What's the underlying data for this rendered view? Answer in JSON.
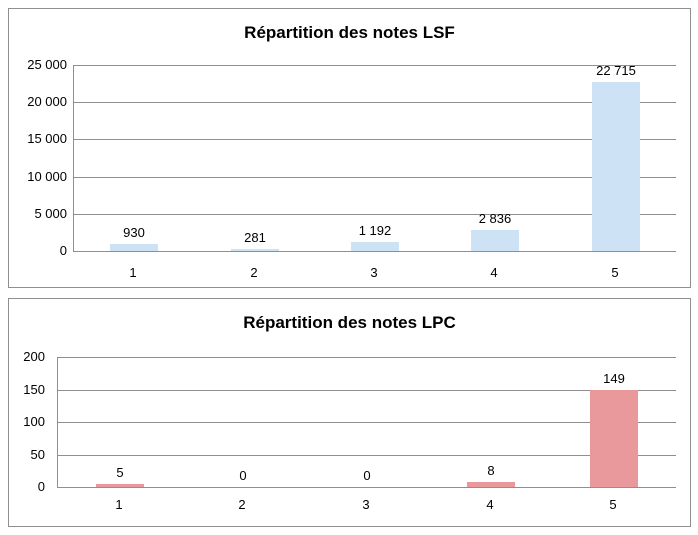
{
  "colors": {
    "background": "#FFFFFF",
    "panel_border": "#8F8F8F",
    "gridline": "#8F8F8F",
    "text": "#000000",
    "lsf_bar": "#CEE2F5",
    "lpc_bar": "#E9989B"
  },
  "chart_data": [
    {
      "type": "bar",
      "title": "Répartition des notes LSF",
      "categories": [
        "1",
        "2",
        "3",
        "4",
        "5"
      ],
      "values": [
        930,
        281,
        1192,
        2836,
        22715
      ],
      "value_labels": [
        "930",
        "281",
        "1 192",
        "2 836",
        "22 715"
      ],
      "xlabel": "",
      "ylabel": "",
      "ylim": [
        0,
        25000
      ],
      "y_ticks": [
        0,
        5000,
        10000,
        15000,
        20000,
        25000
      ],
      "y_tick_labels": [
        "0",
        "5 000",
        "10 000",
        "15 000",
        "20 000",
        "25 000"
      ],
      "grid": true,
      "legend": "none",
      "bar_color": "#CEE2F5"
    },
    {
      "type": "bar",
      "title": "Répartition des notes LPC",
      "categories": [
        "1",
        "2",
        "3",
        "4",
        "5"
      ],
      "values": [
        5,
        0,
        0,
        8,
        149
      ],
      "value_labels": [
        "5",
        "0",
        "0",
        "8",
        "149"
      ],
      "xlabel": "",
      "ylabel": "",
      "ylim": [
        0,
        200
      ],
      "y_ticks": [
        0,
        50,
        100,
        150,
        200
      ],
      "y_tick_labels": [
        "0",
        "50",
        "100",
        "150",
        "200"
      ],
      "grid": true,
      "legend": "none",
      "bar_color": "#E9989B"
    }
  ]
}
